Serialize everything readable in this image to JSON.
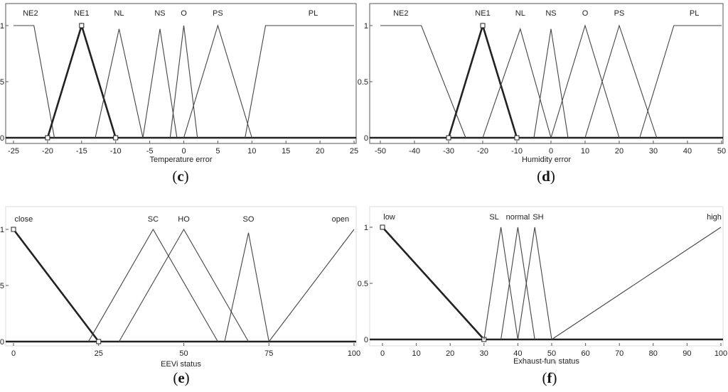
{
  "chart_data": [
    {
      "type": "line",
      "panel_label": "c",
      "xlabel": "Temperature error",
      "xlim": [
        -25,
        25
      ],
      "ylim": [
        0,
        1
      ],
      "xticks": [
        "-25",
        "-20",
        "-15",
        "-10",
        "-5",
        "0",
        "5",
        "10",
        "15",
        "20",
        "25"
      ],
      "yticks": [
        "0",
        "0.5",
        "1"
      ],
      "series": [
        {
          "name": "NE2",
          "points": [
            [
              -25,
              1
            ],
            [
              -22,
              1
            ],
            [
              -19,
              0
            ]
          ],
          "bold": false
        },
        {
          "name": "NE1",
          "points": [
            [
              -20,
              0
            ],
            [
              -15,
              1
            ],
            [
              -10,
              0
            ]
          ],
          "bold": true
        },
        {
          "name": "NL",
          "points": [
            [
              -13,
              0
            ],
            [
              -9.5,
              0.97
            ],
            [
              -6,
              0
            ]
          ],
          "bold": false
        },
        {
          "name": "NS",
          "points": [
            [
              -6,
              0
            ],
            [
              -3.5,
              0.97
            ],
            [
              -1,
              0
            ]
          ],
          "bold": false
        },
        {
          "name": "O",
          "points": [
            [
              -2,
              0
            ],
            [
              0,
              1
            ],
            [
              2,
              0
            ]
          ],
          "bold": false
        },
        {
          "name": "PS",
          "points": [
            [
              0,
              0
            ],
            [
              5,
              1
            ],
            [
              10,
              0
            ]
          ],
          "bold": false
        },
        {
          "name": "PL",
          "points": [
            [
              9,
              0
            ],
            [
              12,
              1
            ],
            [
              25,
              1
            ]
          ],
          "bold": false
        }
      ],
      "label_names": [
        "NE2",
        "NE1",
        "NL",
        "NS",
        "O",
        "PS",
        "PL"
      ],
      "label_x": [
        -22.5,
        -15,
        -9.5,
        -3.5,
        0,
        5,
        19
      ]
    },
    {
      "type": "line",
      "panel_label": "d",
      "xlabel": "Humidity error",
      "xlim": [
        -50,
        50
      ],
      "ylim": [
        0,
        1
      ],
      "xticks": [
        "-50",
        "-40",
        "-30",
        "-20",
        "-10",
        "0",
        "10",
        "20",
        "30",
        "40",
        "50"
      ],
      "yticks": [
        "0",
        "0.5",
        "1"
      ],
      "series": [
        {
          "name": "NE2",
          "points": [
            [
              -50,
              1
            ],
            [
              -38,
              1
            ],
            [
              -25,
              0
            ]
          ],
          "bold": false
        },
        {
          "name": "NE1",
          "points": [
            [
              -30,
              0
            ],
            [
              -20,
              1
            ],
            [
              -10,
              0
            ]
          ],
          "bold": true
        },
        {
          "name": "NL",
          "points": [
            [
              -20,
              0
            ],
            [
              -9,
              0.97
            ],
            [
              0,
              0
            ]
          ],
          "bold": false
        },
        {
          "name": "NS",
          "points": [
            [
              -5,
              0
            ],
            [
              0,
              0.97
            ],
            [
              5,
              0
            ]
          ],
          "bold": false
        },
        {
          "name": "O",
          "points": [
            [
              0,
              0
            ],
            [
              10,
              1
            ],
            [
              20,
              0
            ]
          ],
          "bold": false
        },
        {
          "name": "PS",
          "points": [
            [
              10,
              0
            ],
            [
              20,
              1
            ],
            [
              31,
              0
            ]
          ],
          "bold": false
        },
        {
          "name": "PL",
          "points": [
            [
              26,
              0
            ],
            [
              36,
              1
            ],
            [
              50,
              1
            ]
          ],
          "bold": false
        }
      ],
      "label_names": [
        "NE2",
        "NE1",
        "NL",
        "NS",
        "O",
        "PS",
        "PL"
      ],
      "label_x": [
        -44,
        -20,
        -9,
        0,
        10,
        20,
        42
      ]
    },
    {
      "type": "line",
      "panel_label": "e",
      "xlabel": "EEVi status",
      "xlim": [
        0,
        100
      ],
      "ylim": [
        0,
        1
      ],
      "xticks": [
        "0",
        "25",
        "50",
        "75",
        "100"
      ],
      "yticks": [
        "0",
        "0.5",
        "1"
      ],
      "series": [
        {
          "name": "close",
          "points": [
            [
              0,
              1
            ],
            [
              25,
              0
            ]
          ],
          "bold": true
        },
        {
          "name": "SC",
          "points": [
            [
              22,
              0
            ],
            [
              41,
              1
            ],
            [
              60,
              0
            ]
          ],
          "bold": false
        },
        {
          "name": "HO",
          "points": [
            [
              31,
              0
            ],
            [
              50,
              1
            ],
            [
              69,
              0
            ]
          ],
          "bold": false
        },
        {
          "name": "SO",
          "points": [
            [
              62,
              0
            ],
            [
              69,
              0.97
            ],
            [
              75,
              0
            ]
          ],
          "bold": false
        },
        {
          "name": "open",
          "points": [
            [
              75,
              0
            ],
            [
              100,
              1
            ]
          ],
          "bold": false
        }
      ],
      "label_names": [
        "close",
        "SC",
        "HO",
        "SO",
        "open"
      ],
      "label_x": [
        3,
        41,
        50,
        69,
        96
      ]
    },
    {
      "type": "line",
      "panel_label": "f",
      "xlabel": "Exhaust-funᵢ status",
      "xlim": [
        0,
        100
      ],
      "ylim": [
        0,
        1
      ],
      "xticks": [
        "0",
        "10",
        "20",
        "30",
        "40",
        "50",
        "60",
        "70",
        "80",
        "90",
        "100"
      ],
      "yticks": [
        "0",
        "0.5",
        "1"
      ],
      "series": [
        {
          "name": "low",
          "points": [
            [
              0,
              1
            ],
            [
              30,
              0
            ]
          ],
          "bold": true
        },
        {
          "name": "SL",
          "points": [
            [
              30,
              0
            ],
            [
              35,
              1
            ],
            [
              40,
              0
            ]
          ],
          "bold": false
        },
        {
          "name": "normal",
          "points": [
            [
              35,
              0
            ],
            [
              40,
              1
            ],
            [
              45,
              0
            ]
          ],
          "bold": false
        },
        {
          "name": "SH",
          "points": [
            [
              40,
              0
            ],
            [
              45,
              1
            ],
            [
              50,
              0
            ]
          ],
          "bold": false
        },
        {
          "name": "high",
          "points": [
            [
              50,
              0
            ],
            [
              100,
              1
            ]
          ],
          "bold": false
        }
      ],
      "label_names": [
        "low",
        "SL",
        "normal",
        "SH",
        "high"
      ],
      "label_x": [
        2,
        33,
        40,
        46,
        98
      ]
    }
  ]
}
